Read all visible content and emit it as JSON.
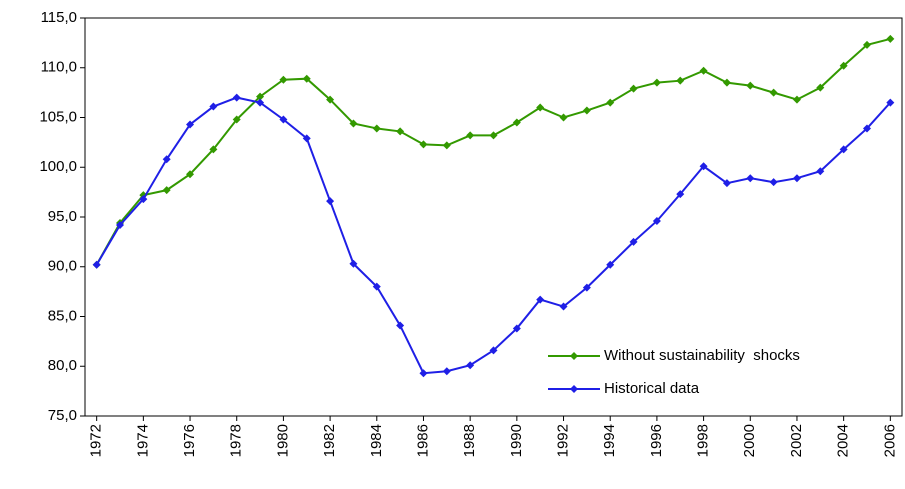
{
  "chart_data": {
    "type": "line",
    "x": [
      1972,
      1973,
      1974,
      1975,
      1976,
      1977,
      1978,
      1979,
      1980,
      1981,
      1982,
      1983,
      1984,
      1985,
      1986,
      1987,
      1988,
      1989,
      1990,
      1991,
      1992,
      1993,
      1994,
      1995,
      1996,
      1997,
      1998,
      1999,
      2000,
      2001,
      2002,
      2003,
      2004,
      2005,
      2006
    ],
    "series": [
      {
        "name": "Without sustainability  shocks",
        "color": "#339900",
        "values": [
          90.2,
          94.4,
          97.2,
          97.7,
          99.3,
          101.8,
          104.8,
          107.1,
          108.8,
          108.9,
          106.8,
          104.4,
          103.9,
          103.6,
          102.3,
          102.2,
          103.2,
          103.2,
          104.5,
          106.0,
          105.0,
          105.7,
          106.5,
          107.9,
          108.5,
          108.7,
          109.7,
          108.5,
          108.2,
          107.5,
          106.8,
          108.0,
          110.2,
          112.3,
          112.9
        ]
      },
      {
        "name": "Historical data",
        "color": "#1f1fe6",
        "values": [
          90.2,
          94.2,
          96.8,
          100.8,
          104.3,
          106.1,
          107.0,
          106.5,
          104.8,
          102.9,
          96.6,
          90.3,
          88.0,
          84.1,
          79.3,
          79.5,
          80.1,
          81.6,
          83.8,
          86.7,
          86.0,
          87.9,
          90.2,
          92.5,
          94.6,
          97.3,
          100.1,
          98.4,
          98.9,
          98.5,
          98.9,
          99.6,
          101.8,
          103.9,
          106.5
        ]
      }
    ],
    "xlim": [
      1971.5,
      2006.5
    ],
    "xticks": [
      1972,
      1974,
      1976,
      1978,
      1980,
      1982,
      1984,
      1986,
      1988,
      1990,
      1992,
      1994,
      1996,
      1998,
      2000,
      2002,
      2004,
      2006
    ],
    "ylim": [
      75,
      115
    ],
    "yticks": [
      {
        "value": 75,
        "label": "75,0"
      },
      {
        "value": 80,
        "label": "80,0"
      },
      {
        "value": 85,
        "label": "85,0"
      },
      {
        "value": 90,
        "label": "90,0"
      },
      {
        "value": 95,
        "label": "95,0"
      },
      {
        "value": 100,
        "label": "100,0"
      },
      {
        "value": 105,
        "label": "105,0"
      },
      {
        "value": 110,
        "label": "110,0"
      },
      {
        "value": 115,
        "label": "115,0"
      }
    ],
    "legend": "lower right"
  }
}
